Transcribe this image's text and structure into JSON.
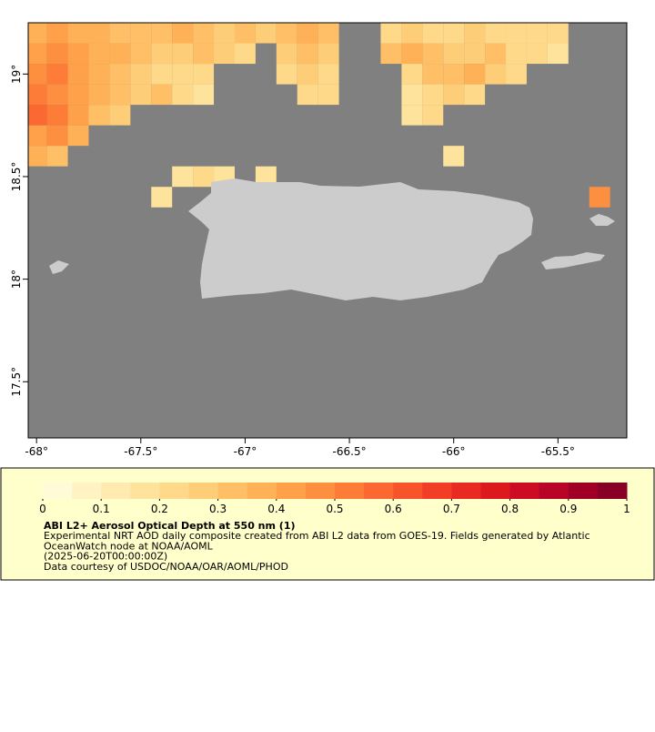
{
  "chart_data": {
    "type": "map",
    "xlim": [
      -68.04,
      -65.17
    ],
    "ylim": [
      17.226,
      19.25
    ],
    "xticks": [
      {
        "value": -68,
        "label": "-68°"
      },
      {
        "value": -67.5,
        "label": "-67.5°"
      },
      {
        "value": -67,
        "label": "-67°"
      },
      {
        "value": -66.5,
        "label": "-66.5°"
      },
      {
        "value": -66,
        "label": "-66°"
      },
      {
        "value": -65.5,
        "label": "-65.5°"
      }
    ],
    "yticks": [
      {
        "value": 17.5,
        "label": "17.5°"
      },
      {
        "value": 18,
        "label": "18°"
      },
      {
        "value": 18.5,
        "label": "18.5°"
      },
      {
        "value": 19,
        "label": "19°"
      }
    ],
    "x": [
      -68.0,
      -67.9,
      -67.8,
      -67.7,
      -67.6,
      -67.5,
      -67.4,
      -67.3,
      -67.2,
      -67.1,
      -67.0,
      -66.9,
      -66.8,
      -66.7,
      -66.6,
      -66.5,
      -66.4,
      -66.3,
      -66.2,
      -66.1,
      -66.0,
      -65.9,
      -65.8,
      -65.7,
      -65.6,
      -65.5,
      -65.4,
      -65.3,
      -65.2
    ],
    "y": [
      19.2,
      19.1,
      19.0,
      18.9,
      18.8,
      18.7,
      18.6,
      18.5,
      18.4
    ],
    "values": [
      [
        0.35,
        0.4,
        0.38,
        0.36,
        0.33,
        0.3,
        0.32,
        0.35,
        0.3,
        0.28,
        0.3,
        0.25,
        0.3,
        0.35,
        0.3,
        null,
        null,
        0.2,
        0.25,
        0.2,
        0.22,
        0.25,
        0.2,
        0.2,
        0.2,
        0.22,
        null,
        null,
        null
      ],
      [
        0.4,
        0.45,
        0.42,
        0.38,
        0.35,
        0.3,
        0.28,
        0.25,
        0.3,
        0.25,
        0.2,
        null,
        0.25,
        0.3,
        0.28,
        null,
        null,
        0.3,
        0.35,
        0.3,
        0.25,
        0.25,
        0.3,
        0.2,
        0.2,
        0.18,
        null,
        null,
        null
      ],
      [
        0.45,
        0.5,
        0.42,
        0.35,
        0.3,
        0.25,
        0.2,
        0.2,
        0.22,
        null,
        null,
        null,
        0.2,
        0.25,
        0.2,
        null,
        null,
        null,
        0.2,
        0.3,
        0.3,
        0.35,
        0.25,
        0.2,
        null,
        null,
        null,
        null,
        null
      ],
      [
        0.5,
        0.45,
        0.4,
        0.35,
        0.3,
        0.25,
        0.3,
        0.2,
        0.18,
        null,
        null,
        null,
        null,
        0.2,
        0.2,
        null,
        null,
        null,
        0.15,
        0.2,
        0.25,
        0.2,
        null,
        null,
        null,
        null,
        null,
        null,
        null
      ],
      [
        0.55,
        0.5,
        0.4,
        0.3,
        0.25,
        null,
        null,
        null,
        null,
        null,
        null,
        null,
        null,
        null,
        null,
        null,
        null,
        null,
        0.15,
        0.2,
        null,
        null,
        null,
        null,
        null,
        null,
        null,
        null,
        null
      ],
      [
        0.4,
        0.45,
        0.35,
        null,
        null,
        null,
        null,
        null,
        null,
        null,
        null,
        null,
        null,
        null,
        null,
        null,
        null,
        null,
        null,
        null,
        null,
        null,
        null,
        null,
        null,
        null,
        null,
        null,
        null
      ],
      [
        0.35,
        0.3,
        null,
        null,
        null,
        null,
        null,
        null,
        null,
        null,
        null,
        null,
        null,
        null,
        null,
        null,
        null,
        null,
        null,
        null,
        0.15,
        null,
        null,
        null,
        null,
        null,
        null,
        null,
        null
      ],
      [
        null,
        null,
        null,
        null,
        null,
        null,
        null,
        0.15,
        0.2,
        0.15,
        null,
        0.15,
        null,
        null,
        null,
        null,
        null,
        null,
        null,
        null,
        null,
        null,
        null,
        null,
        null,
        null,
        null,
        null,
        null
      ],
      [
        null,
        null,
        null,
        null,
        null,
        null,
        0.15,
        null,
        null,
        null,
        null,
        null,
        null,
        null,
        null,
        null,
        null,
        null,
        null,
        null,
        null,
        null,
        null,
        null,
        null,
        null,
        null,
        0.45,
        null
      ]
    ],
    "colorbar": {
      "ticks": [
        0,
        0.1,
        0.2,
        0.3,
        0.4,
        0.5,
        0.6,
        0.7,
        0.8,
        0.9,
        1
      ],
      "colors": [
        "#fffbd8",
        "#fff3c4",
        "#ffebb0",
        "#fee39c",
        "#fed98a",
        "#fecd78",
        "#febf66",
        "#feb156",
        "#fea14a",
        "#fd9040",
        "#fd7d38",
        "#fc6831",
        "#f8542c",
        "#f23e26",
        "#e82a22",
        "#dc1a1e",
        "#cc0c22",
        "#b80426",
        "#a10026",
        "#880026"
      ]
    },
    "ocean_color": "#808080",
    "land_color": "#cccccc",
    "title": "ABI L2+ Aerosol Optical Depth at 550 nm (1)",
    "description": [
      "Experimental NRT AOD daily composite created from ABI L2 data from GOES-19. Fields generated by Atlantic",
      "OceanWatch node at NOAA/AOML",
      "(2025-06-20T00:00:00Z)",
      "Data courtesy of USDOC/NOAA/OAR/AOML/PHOD"
    ]
  }
}
